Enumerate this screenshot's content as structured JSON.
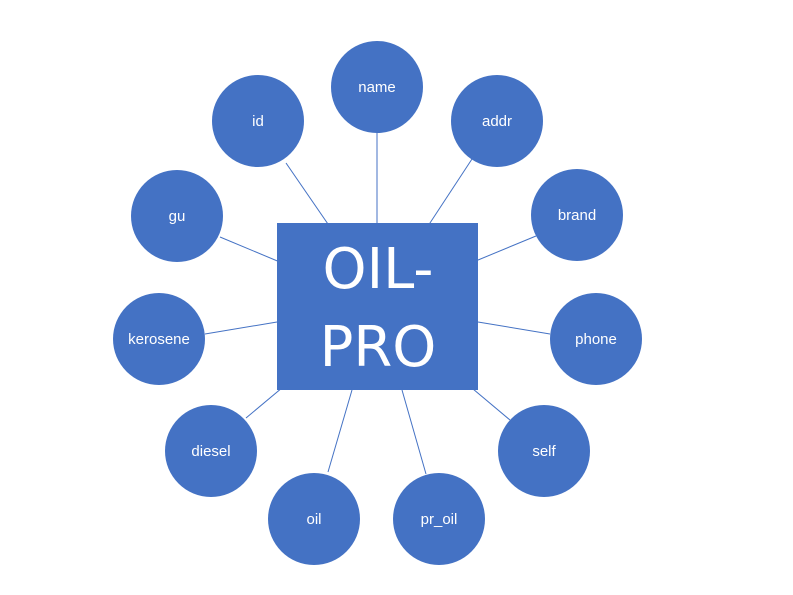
{
  "colors": {
    "accent": "#4472C4",
    "text": "#FFFFFF",
    "background": "#FFFFFF"
  },
  "center": {
    "line1": "OIL-",
    "line2": "PRO"
  },
  "nodes": [
    {
      "id": "name",
      "label": "name"
    },
    {
      "id": "addr",
      "label": "addr"
    },
    {
      "id": "brand",
      "label": "brand"
    },
    {
      "id": "phone",
      "label": "phone"
    },
    {
      "id": "self",
      "label": "self"
    },
    {
      "id": "pr_oil",
      "label": "pr_oil"
    },
    {
      "id": "oil",
      "label": "oil"
    },
    {
      "id": "diesel",
      "label": "diesel"
    },
    {
      "id": "kerosene",
      "label": "kerosene"
    },
    {
      "id": "gu",
      "label": "gu"
    },
    {
      "id": "id",
      "label": "id"
    }
  ]
}
